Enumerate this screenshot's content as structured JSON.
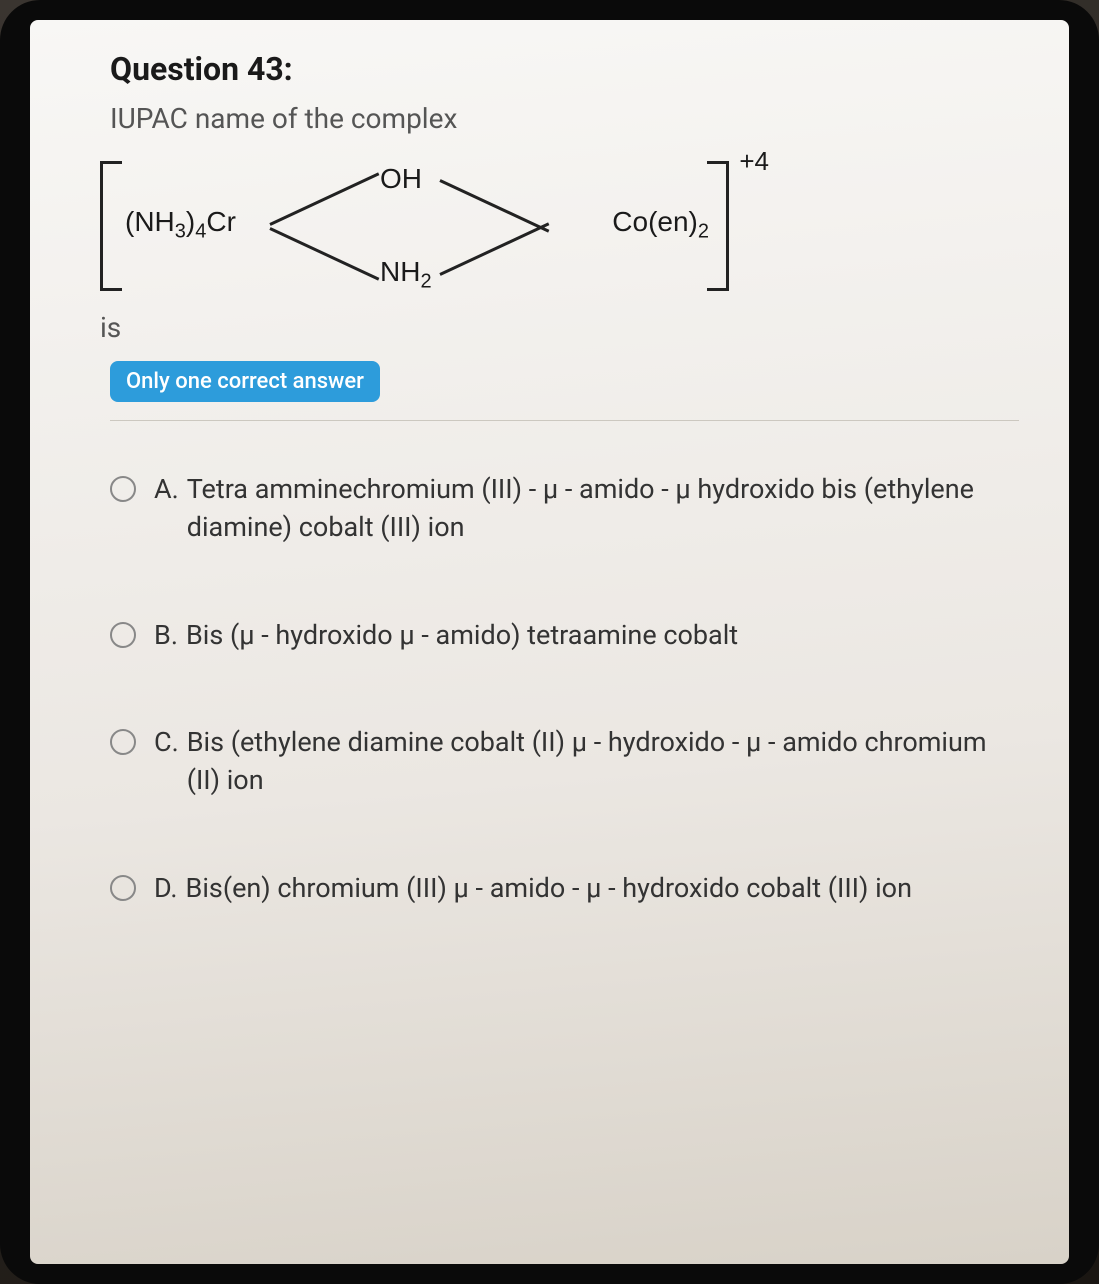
{
  "question": {
    "title": "Question 43:",
    "prompt": "IUPAC name of the complex",
    "structure": {
      "left_group": "(NH₃)₄Cr",
      "top_bridge": "OH",
      "bottom_bridge": "NH₂",
      "right_group": "Co(en)₂",
      "charge": "+4"
    },
    "is_text": "is",
    "badge": "Only one correct answer"
  },
  "options": [
    {
      "letter": "A.",
      "text": "Tetra amminechromium (III) - μ - amido - μ hydroxido bis (ethylene diamine) cobalt (III) ion"
    },
    {
      "letter": "B.",
      "text": "Bis (μ - hydroxido μ - amido) tetraamine cobalt"
    },
    {
      "letter": "C.",
      "text": "Bis (ethylene diamine cobalt (II) μ - hydroxido - μ - amido chromium (II) ion"
    },
    {
      "letter": "D.",
      "text": "Bis(en) chromium (III) μ - amido - μ - hydroxido cobalt (III) ion"
    }
  ],
  "colors": {
    "badge_bg": "#2d9cdb",
    "text_primary": "#1a1a1a",
    "text_secondary": "#555",
    "screen_bg": "#f5f3ef"
  }
}
